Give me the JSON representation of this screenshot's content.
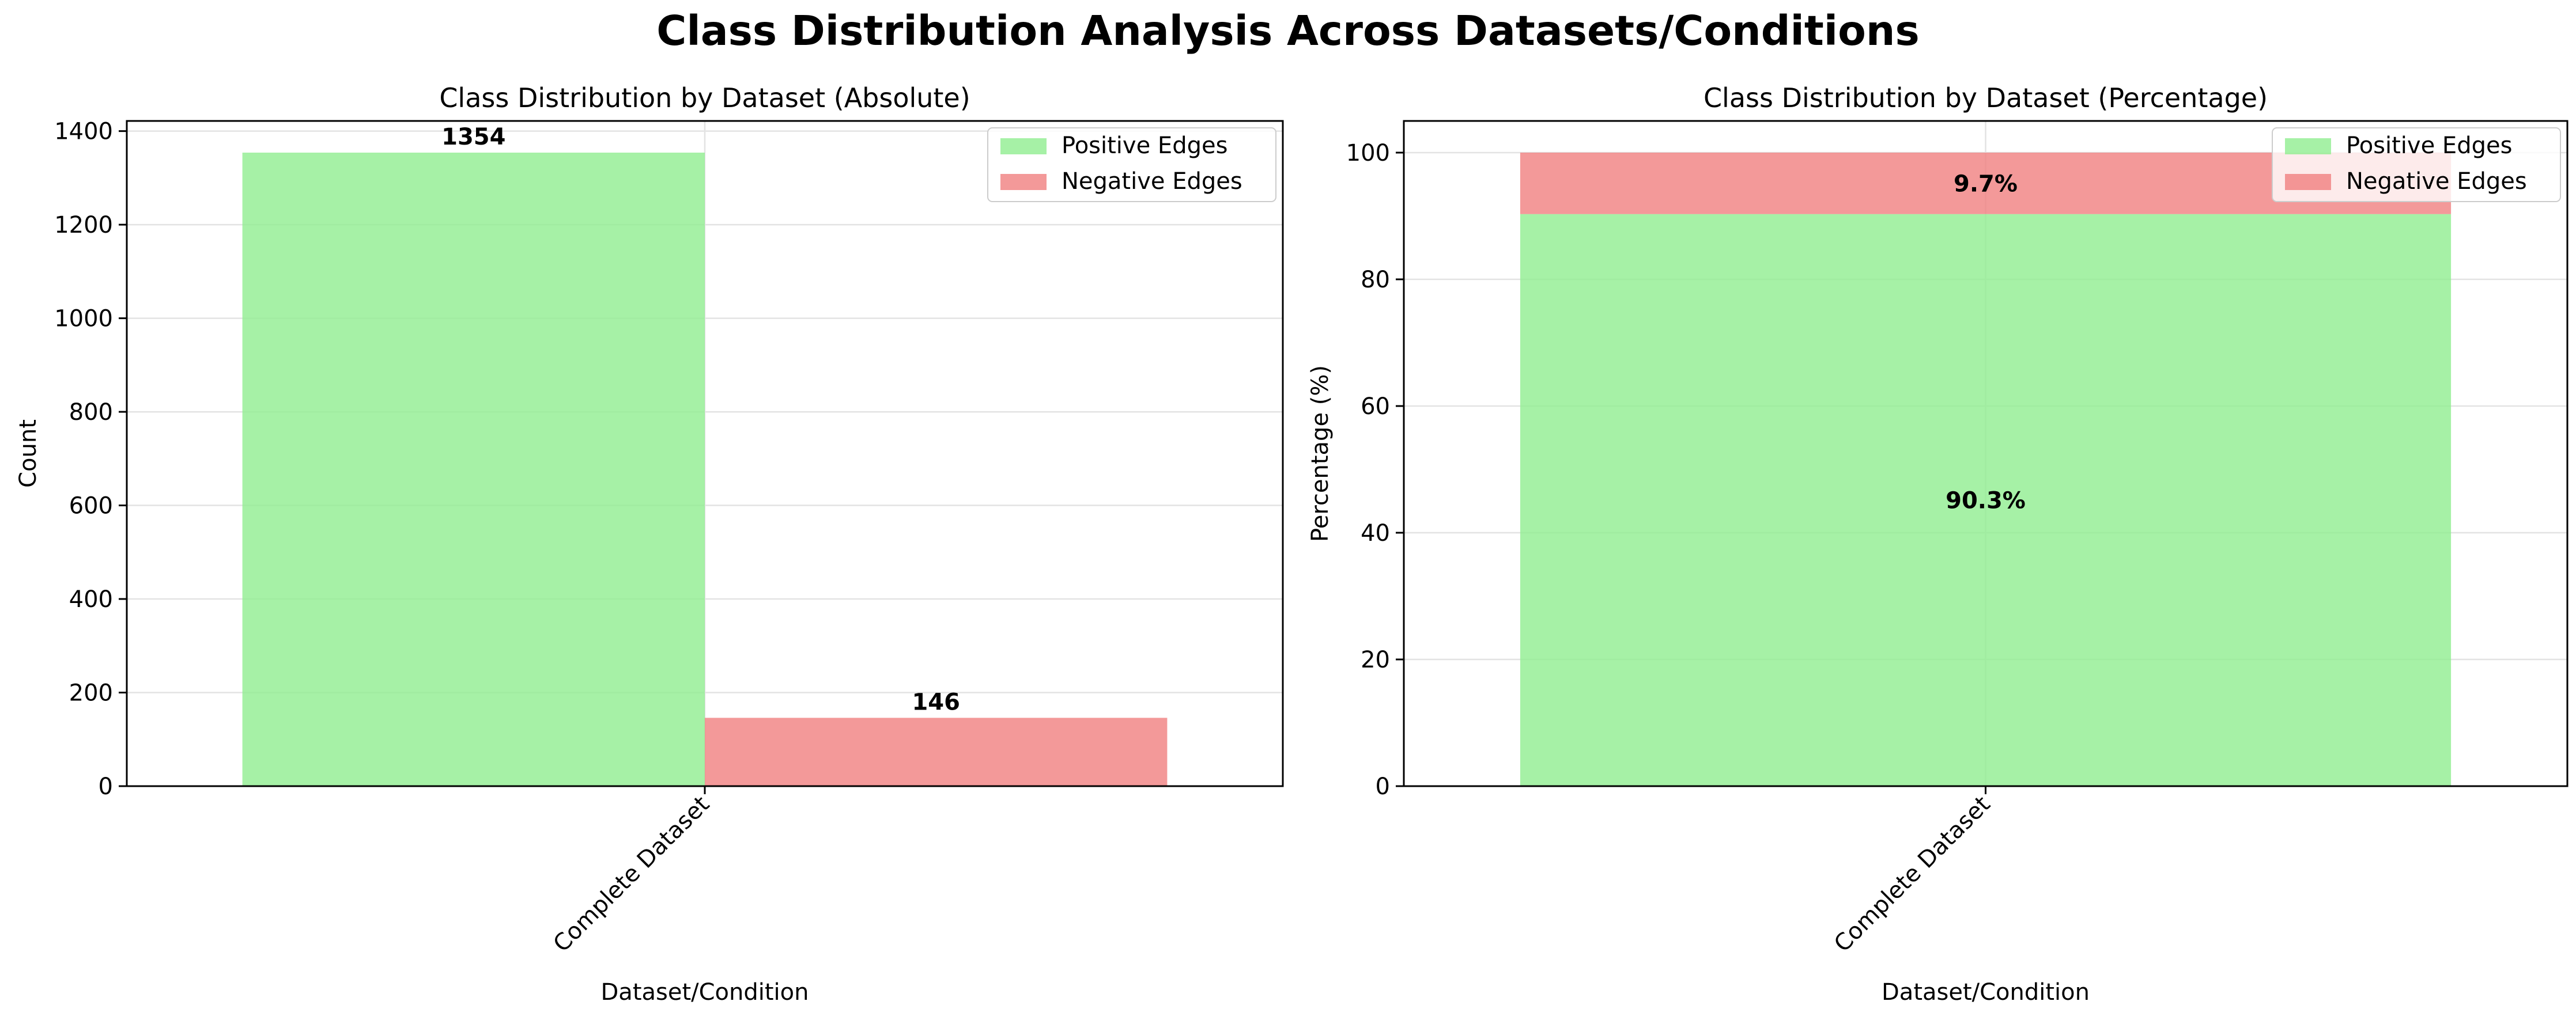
{
  "figure_title": "Class Distribution Analysis Across Datasets/Conditions",
  "colors": {
    "positive": "#90ee90",
    "negative": "#f08080",
    "grid": "#e3e3e3"
  },
  "chart_data": [
    {
      "type": "bar",
      "title": "Class Distribution by Dataset (Absolute)",
      "xlabel": "Dataset/Condition",
      "ylabel": "Count",
      "categories": [
        "Complete Dataset"
      ],
      "series": [
        {
          "name": "Positive Edges",
          "values": [
            1354
          ],
          "labels": [
            "1354"
          ]
        },
        {
          "name": "Negative Edges",
          "values": [
            146
          ],
          "labels": [
            "146"
          ]
        }
      ],
      "ylim": [
        0,
        1421.7
      ],
      "yticks": [
        0,
        200,
        400,
        600,
        800,
        1000,
        1200,
        1400
      ],
      "grid": true,
      "legend": "top-right",
      "stacked": false
    },
    {
      "type": "bar",
      "title": "Class Distribution by Dataset (Percentage)",
      "xlabel": "Dataset/Condition",
      "ylabel": "Percentage (%)",
      "categories": [
        "Complete Dataset"
      ],
      "series": [
        {
          "name": "Positive Edges",
          "values": [
            90.3
          ],
          "labels": [
            "90.3%"
          ]
        },
        {
          "name": "Negative Edges",
          "values": [
            9.7
          ],
          "labels": [
            "9.7%"
          ]
        }
      ],
      "ylim": [
        0,
        105
      ],
      "yticks": [
        0,
        20,
        40,
        60,
        80,
        100
      ],
      "grid": true,
      "legend": "top-right",
      "stacked": true
    }
  ]
}
